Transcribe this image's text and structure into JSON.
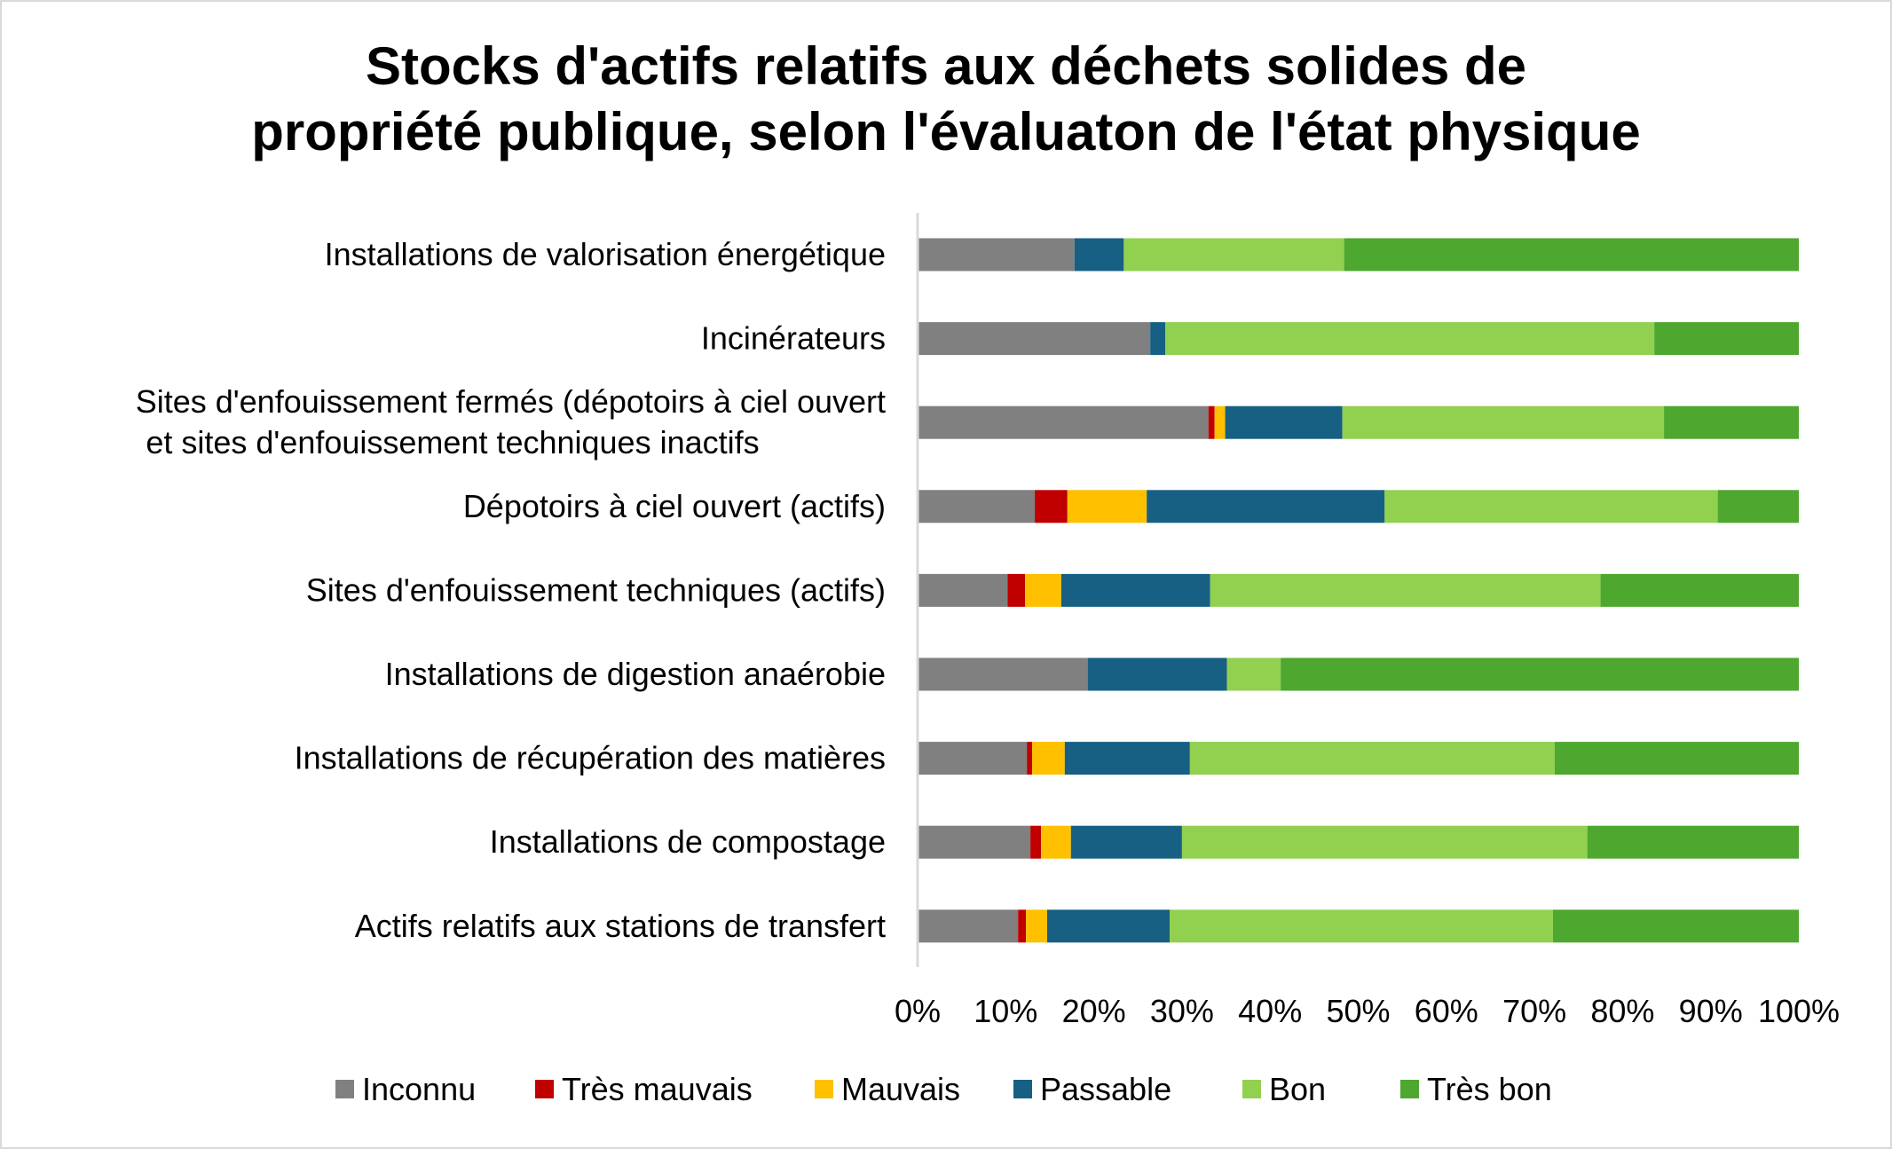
{
  "chart_data": {
    "type": "bar",
    "orientation": "horizontal",
    "stacked": "percent",
    "title": [
      "Stocks d'actifs relatifs aux déchets solides de",
      "propriété publique, selon l'évaluaton de l'état physique"
    ],
    "xlabel": "",
    "ylabel": "",
    "xlim": [
      0,
      100
    ],
    "grid": false,
    "legend_position": "bottom",
    "tick_labels": [
      "0%",
      "10%",
      "20%",
      "30%",
      "40%",
      "50%",
      "60%",
      "70%",
      "80%",
      "90%",
      "100%"
    ],
    "categories": [
      [
        "Installations de valorisation énergétique "
      ],
      [
        "Incinérateurs"
      ],
      [
        "Sites d'enfouissement fermés (dépotoirs à ciel ouvert",
        "et sites d'enfouissement techniques inactifs"
      ],
      [
        "Dépotoirs à ciel ouvert (actifs)"
      ],
      [
        "Sites d'enfouissement techniques (actifs)"
      ],
      [
        "Installations de digestion anaérobie"
      ],
      [
        "Installations de récupération des matières"
      ],
      [
        "Installations de compostage"
      ],
      [
        "Actifs relatifs aux stations de transfert"
      ]
    ],
    "series": [
      {
        "name": "Inconnu",
        "color": "#808080",
        "values": [
          17.8,
          26.4,
          33.0,
          13.3,
          10.2,
          19.3,
          12.4,
          12.8,
          11.4
        ]
      },
      {
        "name": "Très mauvais",
        "color": "#c00000",
        "values": [
          0,
          0,
          0.7,
          3.7,
          2.0,
          0,
          0.6,
          1.2,
          0.9
        ]
      },
      {
        "name": "Mauvais",
        "color": "#ffc000",
        "values": [
          0,
          0,
          1.2,
          9.0,
          4.1,
          0,
          3.7,
          3.4,
          2.4
        ]
      },
      {
        "name": "Passable",
        "color": "#176083",
        "values": [
          5.6,
          1.7,
          13.3,
          27.0,
          16.9,
          15.8,
          14.2,
          12.6,
          13.9
        ]
      },
      {
        "name": "Bon",
        "color": "#92d050",
        "values": [
          25.0,
          55.5,
          36.5,
          37.8,
          44.3,
          6.1,
          41.4,
          46.0,
          43.5
        ]
      },
      {
        "name": "Très bon",
        "color": "#4ea72e",
        "values": [
          51.6,
          16.4,
          15.3,
          9.2,
          22.5,
          58.8,
          27.7,
          24.0,
          27.9
        ]
      }
    ]
  }
}
